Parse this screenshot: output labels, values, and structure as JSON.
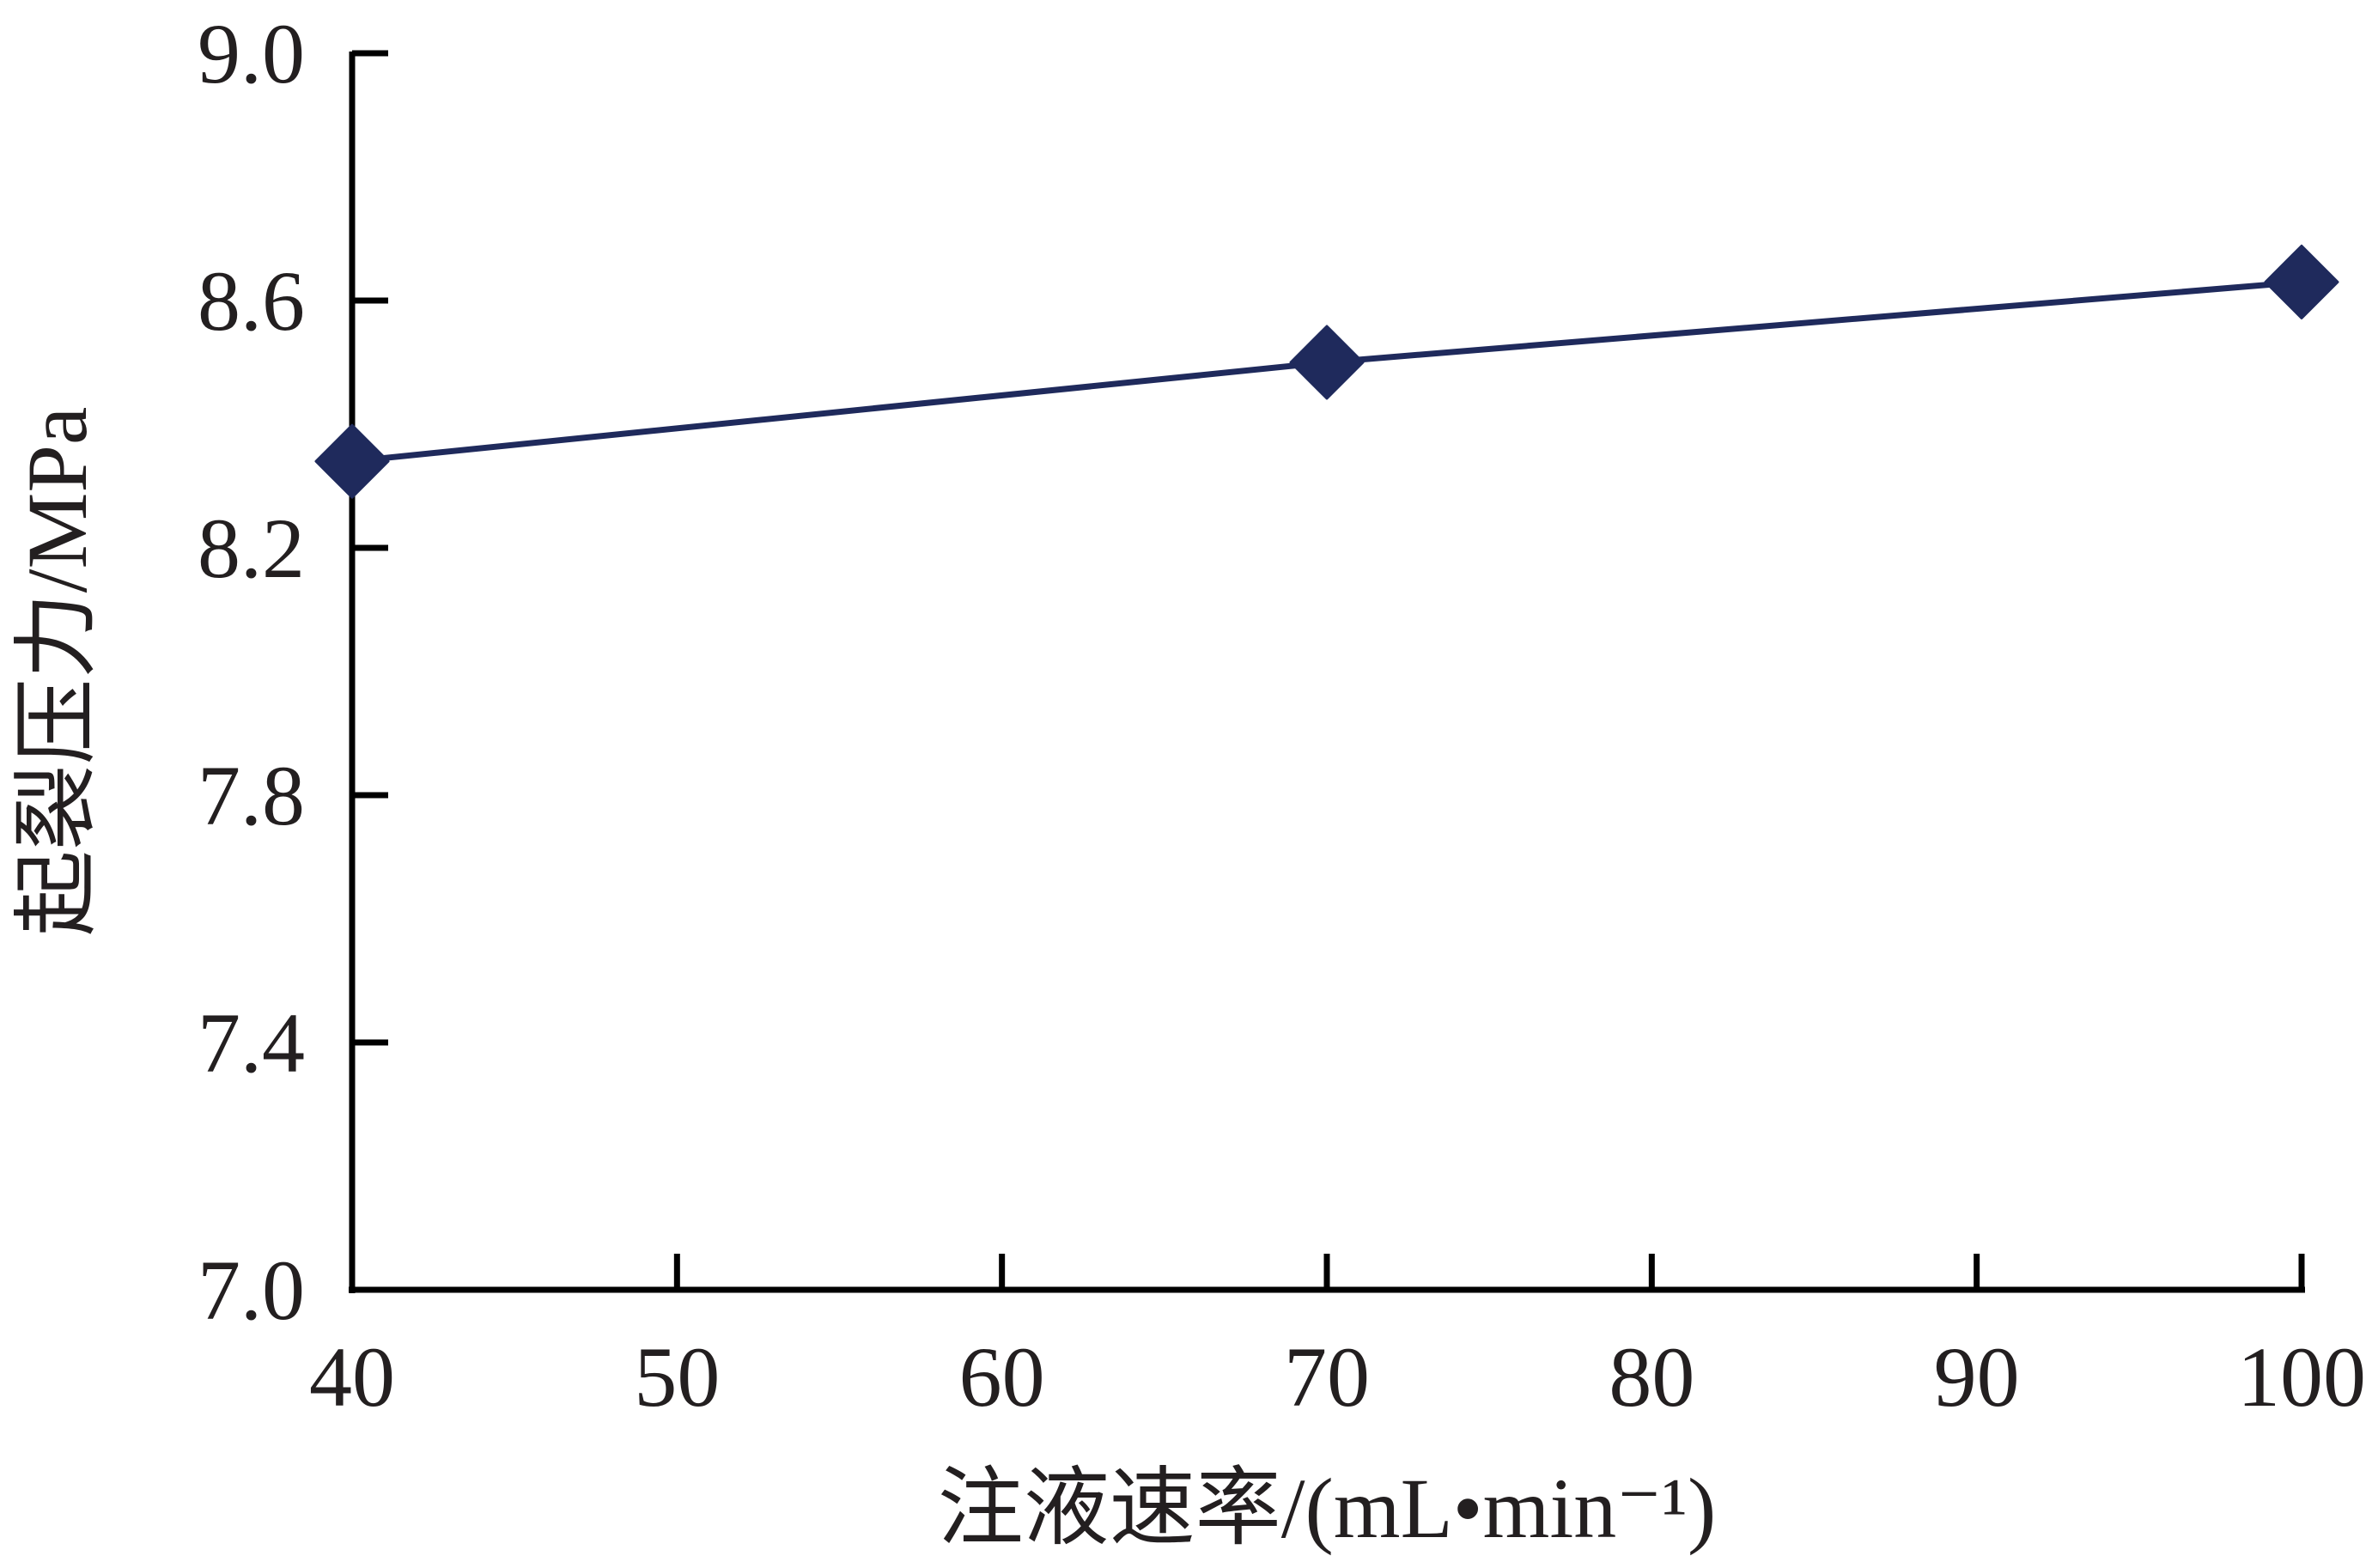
{
  "chart_data": {
    "type": "line",
    "title": "",
    "xlabel": "注液速率/(mL•min⁻¹)",
    "ylabel": "起裂压力/MPa",
    "xlim": [
      40,
      100
    ],
    "ylim": [
      7.0,
      9.0
    ],
    "x_ticks": [
      40,
      50,
      60,
      70,
      80,
      90,
      100
    ],
    "x_tick_labels": [
      "40",
      "50",
      "60",
      "70",
      "80",
      "90",
      "100"
    ],
    "y_ticks": [
      7.0,
      7.4,
      7.8,
      8.2,
      8.6,
      9.0
    ],
    "y_tick_labels": [
      "7.0",
      "7.4",
      "7.8",
      "8.2",
      "8.6",
      "9.0"
    ],
    "grid": false,
    "legend": "none",
    "series": [
      {
        "marker": "diamond",
        "color": "#1f2a5c",
        "x": [
          40,
          70,
          100
        ],
        "y": [
          8.34,
          8.5,
          8.63
        ]
      }
    ]
  }
}
